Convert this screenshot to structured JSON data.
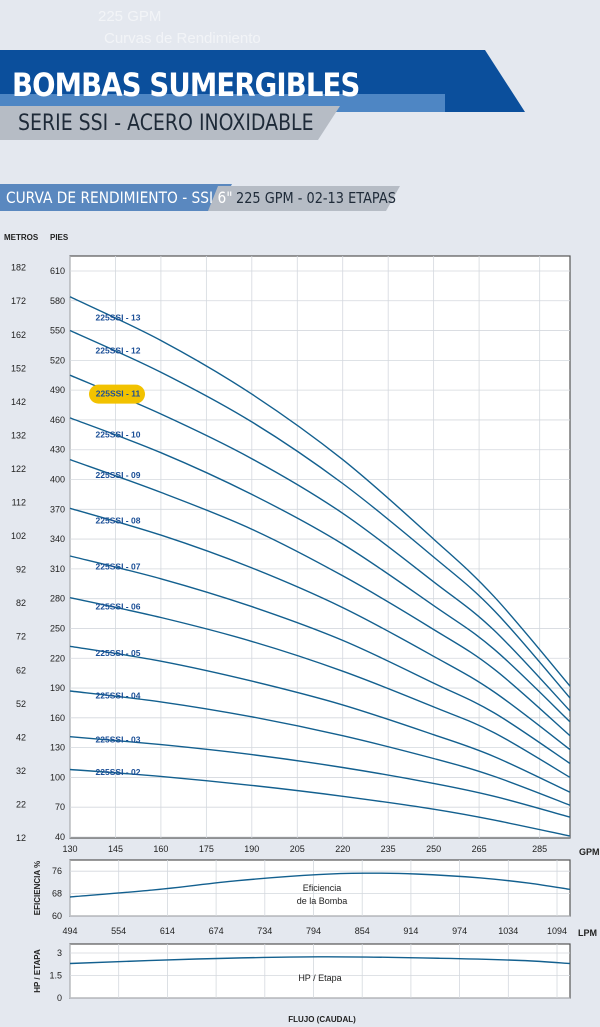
{
  "header": {
    "ghost_line1": "225 GPM",
    "ghost_line2": "Curvas de Rendimiento",
    "title": "BOMBAS SUMERGIBLES",
    "subtitle": "SERIE SSI - ACERO INOXIDABLE",
    "section_title": "CURVA DE RENDIMIENTO - SSI 6\"",
    "section_subtitle": "225 GPM - 02-13 ETAPAS"
  },
  "colors": {
    "navy": "#0b4f9c",
    "gray_bar": "#b6bcc5",
    "curve": "#13608f",
    "highlight": "#f2c200",
    "label_blue": "#1a4e96"
  },
  "chart_data": [
    {
      "type": "line",
      "title": "",
      "xlabel": "GPM",
      "ylabel_left": "PIES",
      "ylabel_secondary": "METROS",
      "xlim": [
        130,
        295
      ],
      "ylim": [
        40,
        615
      ],
      "x_ticks": [
        130,
        145,
        160,
        175,
        190,
        205,
        220,
        235,
        250,
        265,
        285
      ],
      "y_ticks": [
        40,
        70,
        100,
        130,
        160,
        190,
        220,
        250,
        280,
        310,
        340,
        370,
        400,
        430,
        460,
        490,
        520,
        550,
        580,
        610
      ],
      "meters_ticks": [
        12,
        22,
        32,
        42,
        52,
        62,
        72,
        82,
        92,
        102,
        112,
        122,
        132,
        142,
        152,
        162,
        172,
        182
      ],
      "grid": true,
      "highlighted_series": "225SSI - 11",
      "series": [
        {
          "name": "225SSI - 13",
          "x": [
            130,
            160,
            190,
            220,
            250,
            270,
            295
          ],
          "y": [
            584,
            540,
            486,
            420,
            340,
            282,
            192
          ]
        },
        {
          "name": "225SSI - 12",
          "x": [
            130,
            160,
            190,
            220,
            250,
            270,
            295
          ],
          "y": [
            550,
            508,
            458,
            396,
            322,
            268,
            180
          ]
        },
        {
          "name": "225SSI - 11",
          "x": [
            130,
            160,
            190,
            220,
            250,
            270,
            295
          ],
          "y": [
            505,
            466,
            421,
            366,
            297,
            248,
            167
          ]
        },
        {
          "name": "225SSI - 10",
          "x": [
            130,
            160,
            190,
            220,
            250,
            270,
            295
          ],
          "y": [
            462,
            427,
            385,
            335,
            273,
            229,
            156
          ]
        },
        {
          "name": "225SSI - 09",
          "x": [
            130,
            160,
            190,
            220,
            250,
            270,
            295
          ],
          "y": [
            420,
            387,
            350,
            303,
            249,
            209,
            142
          ]
        },
        {
          "name": "225SSI - 08",
          "x": [
            130,
            160,
            190,
            220,
            250,
            270,
            295
          ],
          "y": [
            371,
            344,
            311,
            271,
            222,
            186,
            128
          ]
        },
        {
          "name": "225SSI - 07",
          "x": [
            130,
            160,
            190,
            220,
            250,
            270,
            295
          ],
          "y": [
            323,
            300,
            272,
            238,
            195,
            165,
            114
          ]
        },
        {
          "name": "225SSI - 06",
          "x": [
            130,
            160,
            190,
            220,
            250,
            270,
            295
          ],
          "y": [
            281,
            261,
            237,
            207,
            171,
            145,
            100
          ]
        },
        {
          "name": "225SSI - 05",
          "x": [
            130,
            160,
            190,
            220,
            250,
            270,
            295
          ],
          "y": [
            232,
            217,
            197,
            173,
            143,
            121,
            85
          ]
        },
        {
          "name": "225SSI - 04",
          "x": [
            130,
            160,
            190,
            220,
            250,
            270,
            295
          ],
          "y": [
            187,
            176,
            161,
            142,
            119,
            101,
            72
          ]
        },
        {
          "name": "225SSI - 03",
          "x": [
            130,
            160,
            190,
            220,
            250,
            270,
            295
          ],
          "y": [
            141,
            133,
            123,
            110,
            94,
            81,
            60
          ]
        },
        {
          "name": "225SSI - 02",
          "x": [
            130,
            160,
            190,
            220,
            250,
            270,
            295
          ],
          "y": [
            108,
            101,
            92,
            81,
            68,
            57,
            41
          ]
        }
      ]
    },
    {
      "type": "line",
      "ylabel": "EFICIENCIA %",
      "xlabel": "LPM",
      "annotation_line1": "Eficiencia",
      "annotation_line2": "de la Bomba",
      "xlim": [
        494,
        1110
      ],
      "ylim": [
        60,
        80
      ],
      "x_ticks": [
        494,
        554,
        614,
        674,
        734,
        794,
        854,
        914,
        974,
        1034,
        1094
      ],
      "y_ticks": [
        60,
        68,
        76
      ],
      "series": [
        {
          "name": "",
          "x": [
            494,
            600,
            700,
            800,
            860,
            920,
            1000,
            1060,
            1110
          ],
          "y": [
            66.8,
            69.4,
            72.6,
            74.8,
            75.3,
            75.0,
            73.6,
            71.7,
            69.5
          ]
        }
      ]
    },
    {
      "type": "line",
      "ylabel": "HP / ETAPA",
      "xlabel": "FLUJO (CAUDAL)",
      "annotation": "HP / Etapa",
      "xlim": [
        494,
        1110
      ],
      "ylim": [
        0,
        3.6
      ],
      "y_ticks": [
        0,
        1.5,
        3
      ],
      "series": [
        {
          "name": "",
          "x": [
            494,
            650,
            800,
            950,
            1050,
            1110
          ],
          "y": [
            2.3,
            2.6,
            2.75,
            2.65,
            2.5,
            2.3
          ]
        }
      ]
    }
  ]
}
